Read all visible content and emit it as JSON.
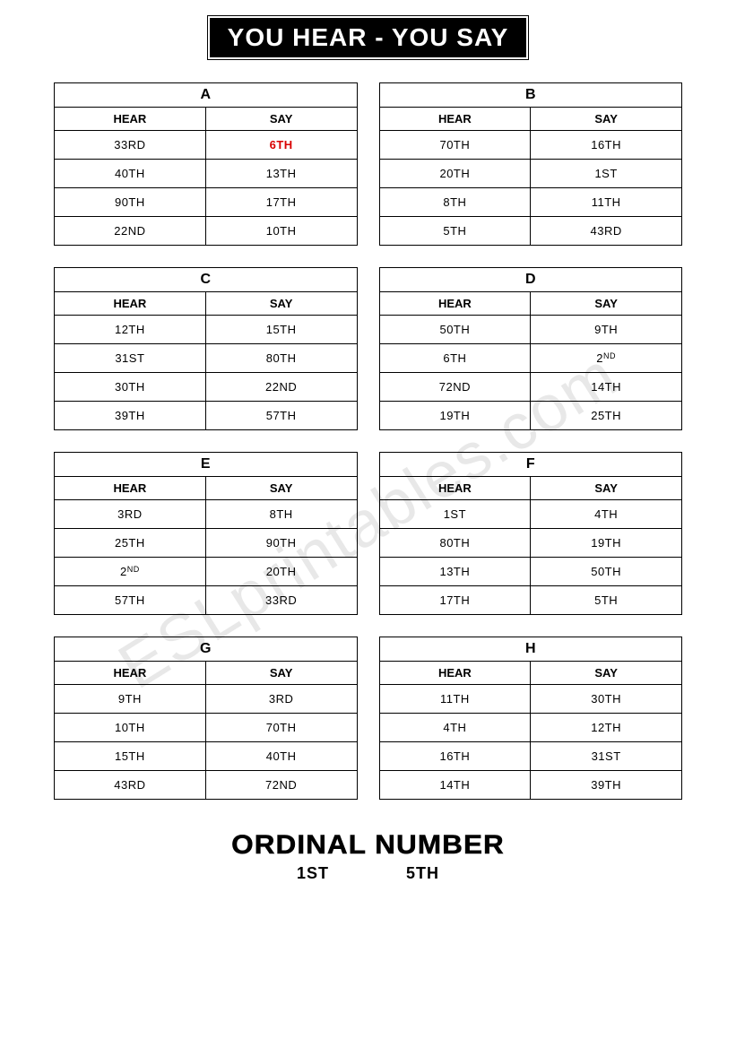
{
  "title": "YOU HEAR - YOU SAY",
  "headers": {
    "hear": "HEAR",
    "say": "SAY"
  },
  "cards": [
    {
      "label": "A",
      "rows": [
        {
          "hear": "33RD",
          "say": "6TH",
          "say_red": true
        },
        {
          "hear": "40TH",
          "say": "13TH"
        },
        {
          "hear": "90TH",
          "say": "17TH"
        },
        {
          "hear": "22ND",
          "say": "10TH"
        }
      ]
    },
    {
      "label": "B",
      "rows": [
        {
          "hear": "70TH",
          "say": "16TH"
        },
        {
          "hear": "20TH",
          "say": "1ST"
        },
        {
          "hear": "8TH",
          "say": "11TH"
        },
        {
          "hear": "5TH",
          "say": "43RD"
        }
      ]
    },
    {
      "label": "C",
      "rows": [
        {
          "hear": "12TH",
          "say": "15TH"
        },
        {
          "hear": "31ST",
          "say": "80TH"
        },
        {
          "hear": "30TH",
          "say": "22ND"
        },
        {
          "hear": "39TH",
          "say": "57TH"
        }
      ]
    },
    {
      "label": "D",
      "rows": [
        {
          "hear": "50TH",
          "say": "9TH"
        },
        {
          "hear": "6TH",
          "say": "2ND",
          "say_sup": true
        },
        {
          "hear": "72ND",
          "say": "14TH"
        },
        {
          "hear": "19TH",
          "say": "25TH"
        }
      ]
    },
    {
      "label": "E",
      "rows": [
        {
          "hear": "3RD",
          "say": "8TH"
        },
        {
          "hear": "25TH",
          "say": "90TH"
        },
        {
          "hear": "2ND",
          "hear_sup": true,
          "say": "20TH"
        },
        {
          "hear": "57TH",
          "say": "33RD"
        }
      ]
    },
    {
      "label": "F",
      "rows": [
        {
          "hear": "1ST",
          "say": "4TH"
        },
        {
          "hear": "80TH",
          "say": "19TH"
        },
        {
          "hear": "13TH",
          "say": "50TH"
        },
        {
          "hear": "17TH",
          "say": "5TH"
        }
      ]
    },
    {
      "label": "G",
      "rows": [
        {
          "hear": "9TH",
          "say": "3RD"
        },
        {
          "hear": "10TH",
          "say": "70TH"
        },
        {
          "hear": "15TH",
          "say": "40TH"
        },
        {
          "hear": "43RD",
          "say": "72ND"
        }
      ]
    },
    {
      "label": "H",
      "rows": [
        {
          "hear": "11TH",
          "say": "30TH"
        },
        {
          "hear": "4TH",
          "say": "12TH"
        },
        {
          "hear": "16TH",
          "say": "31ST"
        },
        {
          "hear": "14TH",
          "say": "39TH"
        }
      ]
    }
  ],
  "footer": {
    "title": "ORDINAL NUMBER",
    "left": "1ST",
    "right": "5TH"
  },
  "watermark": "ESLprintables.com",
  "colors": {
    "red": "#d90000",
    "black": "#000000",
    "bg": "#ffffff",
    "watermark": "rgba(0,0,0,0.09)"
  }
}
